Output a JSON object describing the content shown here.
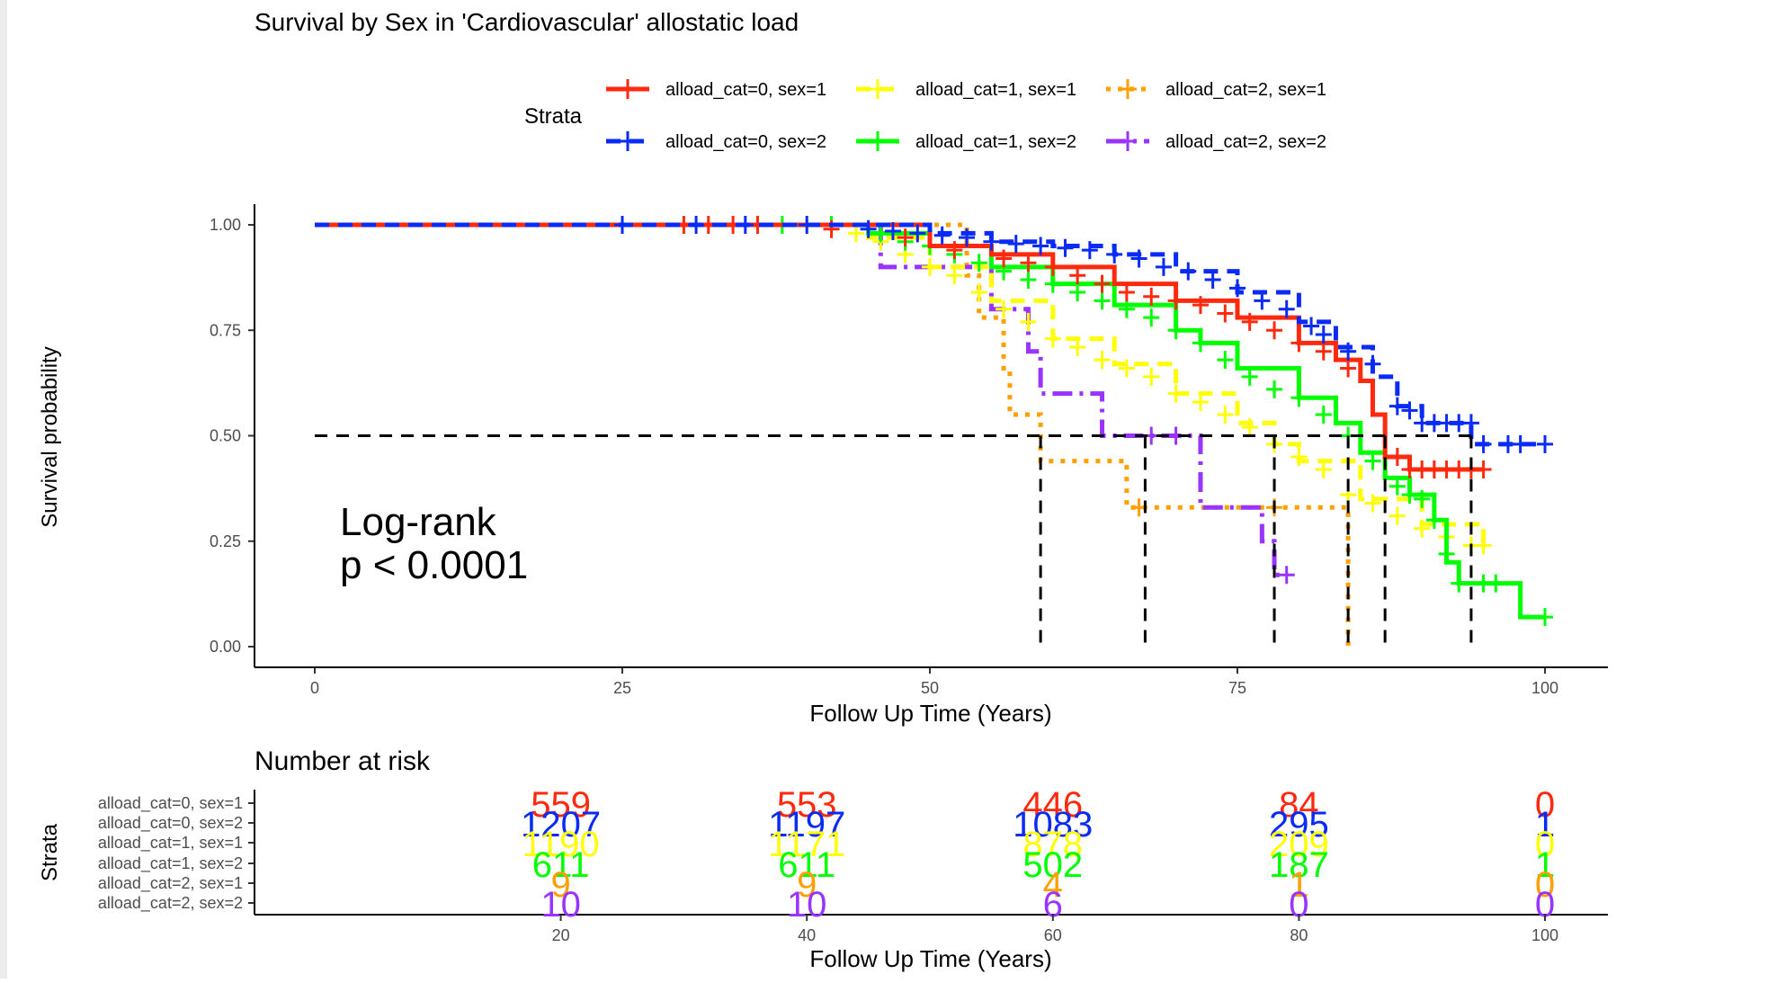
{
  "chart_data": [
    {
      "type": "line",
      "subtype": "kaplan-meier",
      "title": "Survival by Sex in 'Cardiovascular' allostatic load",
      "xlabel": "Follow Up Time (Years)",
      "ylabel": "Survival probability",
      "xlim": [
        0,
        100
      ],
      "ylim": [
        0,
        1
      ],
      "x_ticks": [
        "0",
        "25",
        "50",
        "75",
        "100"
      ],
      "y_ticks": [
        "0.00",
        "0.25",
        "0.50",
        "0.75",
        "1.00"
      ],
      "grid": false,
      "legend": {
        "title": "Strata",
        "placement": "top",
        "entries": [
          "alload_cat=0, sex=1",
          "alload_cat=1, sex=1",
          "alload_cat=2, sex=1",
          "alload_cat=0, sex=2",
          "alload_cat=1, sex=2",
          "alload_cat=2, sex=2"
        ]
      },
      "annotation": {
        "line1": "Log-rank",
        "line2": "p < 0.0001"
      },
      "median_line": {
        "y": 0.5,
        "medians": [
          59,
          67.5,
          78,
          84,
          87,
          94
        ]
      },
      "series": [
        {
          "name": "alload_cat=0, sex=1",
          "color": "#ff2a0d",
          "points": [
            [
              0,
              1
            ],
            [
              45,
              1
            ],
            [
              50,
              0.95
            ],
            [
              55,
              0.93
            ],
            [
              60,
              0.9
            ],
            [
              65,
              0.86
            ],
            [
              70,
              0.82
            ],
            [
              75,
              0.78
            ],
            [
              80,
              0.72
            ],
            [
              83,
              0.68
            ],
            [
              85,
              0.63
            ],
            [
              86,
              0.55
            ],
            [
              87,
              0.45
            ],
            [
              88,
              0.45
            ],
            [
              89,
              0.42
            ],
            [
              95,
              0.42
            ]
          ],
          "censors": [
            [
              30,
              1
            ],
            [
              32,
              1
            ],
            [
              34,
              1
            ],
            [
              36,
              1
            ],
            [
              42,
              0.99
            ],
            [
              48,
              0.97
            ],
            [
              52,
              0.94
            ],
            [
              56,
              0.92
            ],
            [
              58,
              0.91
            ],
            [
              60,
              0.9
            ],
            [
              62,
              0.88
            ],
            [
              64,
              0.86
            ],
            [
              66,
              0.84
            ],
            [
              68,
              0.83
            ],
            [
              70,
              0.82
            ],
            [
              72,
              0.81
            ],
            [
              74,
              0.79
            ],
            [
              76,
              0.77
            ],
            [
              78,
              0.75
            ],
            [
              80,
              0.72
            ],
            [
              82,
              0.7
            ],
            [
              84,
              0.66
            ],
            [
              88,
              0.45
            ],
            [
              89,
              0.42
            ],
            [
              90,
              0.42
            ],
            [
              91,
              0.42
            ],
            [
              92,
              0.42
            ],
            [
              93,
              0.42
            ],
            [
              94,
              0.42
            ],
            [
              95,
              0.42
            ]
          ]
        },
        {
          "name": "alload_cat=1, sex=1",
          "color": "#ffff00",
          "points": [
            [
              0,
              1
            ],
            [
              42,
              1
            ],
            [
              45,
              0.97
            ],
            [
              50,
              0.9
            ],
            [
              55,
              0.82
            ],
            [
              60,
              0.73
            ],
            [
              65,
              0.67
            ],
            [
              70,
              0.6
            ],
            [
              75,
              0.53
            ],
            [
              78,
              0.48
            ],
            [
              80,
              0.44
            ],
            [
              85,
              0.35
            ],
            [
              90,
              0.29
            ],
            [
              95,
              0.24
            ]
          ],
          "censors": [
            [
              40,
              1
            ],
            [
              44,
              0.98
            ],
            [
              46,
              0.96
            ],
            [
              48,
              0.93
            ],
            [
              50,
              0.9
            ],
            [
              52,
              0.88
            ],
            [
              54,
              0.84
            ],
            [
              56,
              0.8
            ],
            [
              58,
              0.77
            ],
            [
              60,
              0.73
            ],
            [
              62,
              0.71
            ],
            [
              64,
              0.68
            ],
            [
              66,
              0.66
            ],
            [
              68,
              0.64
            ],
            [
              70,
              0.6
            ],
            [
              72,
              0.58
            ],
            [
              74,
              0.55
            ],
            [
              76,
              0.52
            ],
            [
              78,
              0.48
            ],
            [
              80,
              0.45
            ],
            [
              82,
              0.42
            ],
            [
              84,
              0.36
            ],
            [
              86,
              0.34
            ],
            [
              88,
              0.31
            ],
            [
              90,
              0.28
            ],
            [
              92,
              0.26
            ],
            [
              94,
              0.24
            ],
            [
              95,
              0.24
            ]
          ]
        },
        {
          "name": "alload_cat=2, sex=1",
          "color": "#ff9f00",
          "points": [
            [
              0,
              1
            ],
            [
              45,
              1
            ],
            [
              53,
              0.88
            ],
            [
              54,
              0.78
            ],
            [
              56,
              0.66
            ],
            [
              56.5,
              0.55
            ],
            [
              59,
              0.44
            ],
            [
              65,
              0.44
            ],
            [
              66,
              0.33
            ],
            [
              83.5,
              0.33
            ],
            [
              84,
              0.22
            ],
            [
              84,
              0
            ]
          ],
          "censors": [
            [
              67,
              0.33
            ],
            [
              78,
              0.33
            ]
          ]
        },
        {
          "name": "alload_cat=0, sex=2",
          "color": "#0a2bf5",
          "points": [
            [
              0,
              1
            ],
            [
              45,
              1
            ],
            [
              50,
              0.98
            ],
            [
              55,
              0.96
            ],
            [
              60,
              0.95
            ],
            [
              65,
              0.93
            ],
            [
              70,
              0.89
            ],
            [
              75,
              0.84
            ],
            [
              80,
              0.77
            ],
            [
              83,
              0.71
            ],
            [
              86,
              0.64
            ],
            [
              88,
              0.57
            ],
            [
              90,
              0.53
            ],
            [
              94,
              0.53
            ],
            [
              94,
              0.48
            ],
            [
              100,
              0.48
            ]
          ],
          "censors": [
            [
              25,
              1
            ],
            [
              31,
              1
            ],
            [
              35,
              1
            ],
            [
              40,
              1
            ],
            [
              45,
              0.99
            ],
            [
              47,
              0.985
            ],
            [
              49,
              0.98
            ],
            [
              51,
              0.975
            ],
            [
              53,
              0.97
            ],
            [
              55,
              0.96
            ],
            [
              57,
              0.955
            ],
            [
              59,
              0.95
            ],
            [
              61,
              0.945
            ],
            [
              63,
              0.94
            ],
            [
              65,
              0.93
            ],
            [
              67,
              0.92
            ],
            [
              69,
              0.9
            ],
            [
              71,
              0.89
            ],
            [
              73,
              0.87
            ],
            [
              75,
              0.85
            ],
            [
              77,
              0.82
            ],
            [
              79,
              0.8
            ],
            [
              81,
              0.76
            ],
            [
              82,
              0.74
            ],
            [
              84,
              0.7
            ],
            [
              86,
              0.67
            ],
            [
              88,
              0.57
            ],
            [
              89,
              0.56
            ],
            [
              90,
              0.53
            ],
            [
              91,
              0.53
            ],
            [
              92,
              0.53
            ],
            [
              93,
              0.53
            ],
            [
              94,
              0.53
            ],
            [
              95,
              0.48
            ],
            [
              97,
              0.48
            ],
            [
              98,
              0.48
            ],
            [
              100,
              0.48
            ]
          ]
        },
        {
          "name": "alload_cat=1, sex=2",
          "color": "#00ff00",
          "points": [
            [
              0,
              1
            ],
            [
              43,
              1
            ],
            [
              45,
              0.98
            ],
            [
              50,
              0.95
            ],
            [
              55,
              0.9
            ],
            [
              60,
              0.86
            ],
            [
              65,
              0.81
            ],
            [
              70,
              0.75
            ],
            [
              72,
              0.72
            ],
            [
              75,
              0.66
            ],
            [
              80,
              0.59
            ],
            [
              83,
              0.53
            ],
            [
              85,
              0.46
            ],
            [
              87,
              0.4
            ],
            [
              89,
              0.36
            ],
            [
              91,
              0.3
            ],
            [
              92,
              0.2
            ],
            [
              93,
              0.15
            ],
            [
              98,
              0.15
            ],
            [
              98,
              0.07
            ],
            [
              100,
              0.07
            ]
          ],
          "censors": [
            [
              38,
              1
            ],
            [
              42,
              1
            ],
            [
              46,
              0.98
            ],
            [
              48,
              0.96
            ],
            [
              50,
              0.95
            ],
            [
              52,
              0.93
            ],
            [
              54,
              0.91
            ],
            [
              56,
              0.89
            ],
            [
              58,
              0.87
            ],
            [
              60,
              0.86
            ],
            [
              62,
              0.84
            ],
            [
              64,
              0.82
            ],
            [
              66,
              0.8
            ],
            [
              68,
              0.78
            ],
            [
              70,
              0.75
            ],
            [
              72,
              0.72
            ],
            [
              74,
              0.68
            ],
            [
              76,
              0.64
            ],
            [
              78,
              0.61
            ],
            [
              80,
              0.59
            ],
            [
              82,
              0.55
            ],
            [
              84,
              0.5
            ],
            [
              86,
              0.44
            ],
            [
              88,
              0.38
            ],
            [
              89,
              0.36
            ],
            [
              90,
              0.35
            ],
            [
              91,
              0.3
            ],
            [
              92,
              0.22
            ],
            [
              93,
              0.15
            ],
            [
              95,
              0.15
            ],
            [
              96,
              0.15
            ],
            [
              100,
              0.07
            ]
          ]
        },
        {
          "name": "alload_cat=2, sex=2",
          "color": "#9933ff",
          "points": [
            [
              0,
              1
            ],
            [
              46,
              1
            ],
            [
              46,
              0.9
            ],
            [
              50,
              0.9
            ],
            [
              55,
              0.8
            ],
            [
              58,
              0.7
            ],
            [
              59,
              0.6
            ],
            [
              63,
              0.6
            ],
            [
              64,
              0.5
            ],
            [
              72,
              0.5
            ],
            [
              72,
              0.33
            ],
            [
              77,
              0.33
            ],
            [
              77,
              0.25
            ],
            [
              78,
              0.17
            ],
            [
              79,
              0.17
            ]
          ],
          "censors": [
            [
              68,
              0.5
            ],
            [
              70,
              0.5
            ],
            [
              79,
              0.17
            ]
          ]
        }
      ]
    },
    {
      "type": "table",
      "title": "Number at risk",
      "xlabel": "Follow Up Time (Years)",
      "ylabel": "Strata",
      "x_ticks": [
        "20",
        "40",
        "60",
        "80",
        "100"
      ],
      "rows": [
        {
          "label": "alload_cat=0, sex=1",
          "color": "#ff2a0d",
          "values": [
            "559",
            "553",
            "446",
            "84",
            "0"
          ]
        },
        {
          "label": "alload_cat=0, sex=2",
          "color": "#0a2bf5",
          "values": [
            "1207",
            "1197",
            "1083",
            "295",
            "1"
          ]
        },
        {
          "label": "alload_cat=1, sex=1",
          "color": "#ffff00",
          "values": [
            "1190",
            "1171",
            "878",
            "209",
            "0"
          ]
        },
        {
          "label": "alload_cat=1, sex=2",
          "color": "#00ff00",
          "values": [
            "611",
            "611",
            "502",
            "187",
            "1"
          ]
        },
        {
          "label": "alload_cat=2, sex=1",
          "color": "#ff9f00",
          "values": [
            "9",
            "9",
            "4",
            "1",
            "0"
          ]
        },
        {
          "label": "alload_cat=2, sex=2",
          "color": "#9933ff",
          "values": [
            "10",
            "10",
            "6",
            "0",
            "0"
          ]
        }
      ]
    }
  ]
}
